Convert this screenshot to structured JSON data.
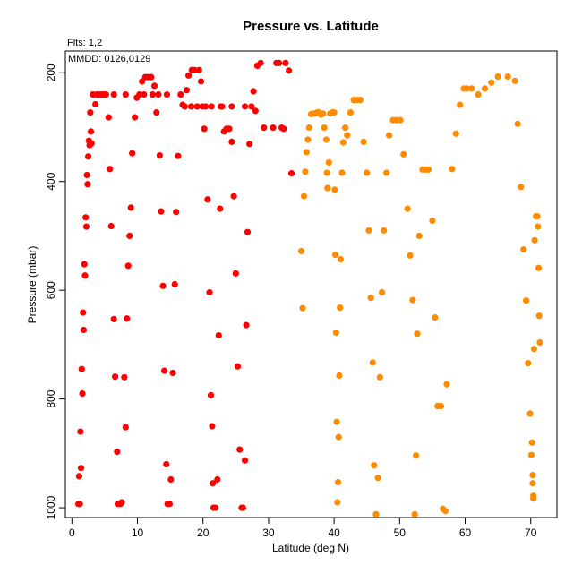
{
  "chart_data": {
    "type": "scatter",
    "title": "Pressure vs. Latitude",
    "xlabel": "Latitude (deg N)",
    "ylabel": "Pressure (mbar)",
    "annotation_flts": "Flts: 1,2",
    "annotation_mmdd": "MMDD: 0126,0129",
    "xlim": [
      -1,
      74
    ],
    "ylim": [
      1018,
      160
    ],
    "y_reversed": true,
    "grid": false,
    "legend": "none",
    "x_ticks": [
      0,
      10,
      20,
      30,
      40,
      50,
      60,
      70
    ],
    "y_ticks": [
      200,
      400,
      600,
      800,
      1000
    ],
    "series": [
      {
        "color": "#ff0000",
        "points": [
          [
            1.0,
            993
          ],
          [
            1.1,
            942
          ],
          [
            1.2,
            993
          ],
          [
            1.3,
            860
          ],
          [
            1.4,
            927
          ],
          [
            1.5,
            745
          ],
          [
            1.6,
            790
          ],
          [
            1.7,
            641
          ],
          [
            1.8,
            673
          ],
          [
            1.9,
            552
          ],
          [
            2.0,
            573
          ],
          [
            2.1,
            466
          ],
          [
            2.2,
            483
          ],
          [
            2.3,
            388
          ],
          [
            2.4,
            405
          ],
          [
            2.5,
            354
          ],
          [
            2.6,
            325
          ],
          [
            2.7,
            333
          ],
          [
            2.8,
            273
          ],
          [
            2.9,
            308
          ],
          [
            3.0,
            330
          ],
          [
            3.2,
            240
          ],
          [
            3.6,
            258
          ],
          [
            4.0,
            240
          ],
          [
            4.4,
            240
          ],
          [
            4.8,
            240
          ],
          [
            5.2,
            240
          ],
          [
            5.6,
            282
          ],
          [
            5.8,
            377
          ],
          [
            6.0,
            482
          ],
          [
            6.4,
            653
          ],
          [
            6.6,
            759
          ],
          [
            6.9,
            897
          ],
          [
            7.0,
            993
          ],
          [
            7.4,
            993
          ],
          [
            7.6,
            990
          ],
          [
            8.0,
            760
          ],
          [
            8.2,
            852
          ],
          [
            8.4,
            652
          ],
          [
            8.6,
            555
          ],
          [
            8.8,
            500
          ],
          [
            9.0,
            448
          ],
          [
            9.2,
            348
          ],
          [
            9.6,
            282
          ],
          [
            9.9,
            246
          ],
          [
            10.3,
            240
          ],
          [
            10.7,
            216
          ],
          [
            11.2,
            208
          ],
          [
            11.6,
            208
          ],
          [
            12.1,
            208
          ],
          [
            12.6,
            224
          ],
          [
            12.9,
            273
          ],
          [
            13.2,
            240
          ],
          [
            13.4,
            352
          ],
          [
            13.6,
            455
          ],
          [
            13.9,
            592
          ],
          [
            14.1,
            748
          ],
          [
            14.4,
            920
          ],
          [
            14.6,
            993
          ],
          [
            14.9,
            993
          ],
          [
            15.1,
            948
          ],
          [
            15.4,
            752
          ],
          [
            15.7,
            589
          ],
          [
            15.9,
            456
          ],
          [
            16.2,
            353
          ],
          [
            16.6,
            240
          ],
          [
            16.9,
            259
          ],
          [
            17.2,
            262
          ],
          [
            17.5,
            232
          ],
          [
            17.8,
            205
          ],
          [
            18.3,
            195
          ],
          [
            18.7,
            195
          ],
          [
            19.1,
            262
          ],
          [
            19.4,
            195
          ],
          [
            19.7,
            216
          ],
          [
            20.2,
            303
          ],
          [
            20.4,
            262
          ],
          [
            20.7,
            433
          ],
          [
            21.0,
            604
          ],
          [
            21.2,
            793
          ],
          [
            21.4,
            850
          ],
          [
            21.5,
            955
          ],
          [
            21.6,
            1000
          ],
          [
            21.9,
            1000
          ],
          [
            22.2,
            948
          ],
          [
            22.4,
            683
          ],
          [
            22.6,
            450
          ],
          [
            22.9,
            262
          ],
          [
            23.2,
            308
          ],
          [
            23.6,
            303
          ],
          [
            24.0,
            303
          ],
          [
            24.4,
            327
          ],
          [
            24.7,
            427
          ],
          [
            25.0,
            569
          ],
          [
            25.3,
            740
          ],
          [
            25.6,
            893
          ],
          [
            25.9,
            1000
          ],
          [
            26.1,
            1000
          ],
          [
            26.4,
            913
          ],
          [
            26.6,
            664
          ],
          [
            26.8,
            493
          ],
          [
            27.1,
            331
          ],
          [
            27.4,
            262
          ],
          [
            27.7,
            234
          ],
          [
            28.0,
            270
          ],
          [
            28.3,
            187
          ],
          [
            28.8,
            182
          ],
          [
            29.3,
            301
          ],
          [
            30.7,
            301
          ],
          [
            31.2,
            182
          ],
          [
            31.6,
            182
          ],
          [
            32.0,
            301
          ],
          [
            32.6,
            182
          ],
          [
            33.1,
            196
          ],
          [
            33.5,
            385
          ],
          [
            26.4,
            262
          ],
          [
            24.4,
            262
          ],
          [
            22.7,
            262
          ],
          [
            21.3,
            262
          ],
          [
            19.9,
            262
          ],
          [
            18.2,
            262
          ],
          [
            14.5,
            240
          ],
          [
            12.3,
            240
          ],
          [
            11.0,
            240
          ],
          [
            8.2,
            240
          ],
          [
            6.4,
            240
          ],
          [
            4.9,
            240
          ],
          [
            3.8,
            240
          ],
          [
            32.3,
            303
          ]
        ]
      },
      {
        "color": "#ff8c00",
        "points": [
          [
            35.0,
            528
          ],
          [
            35.2,
            633
          ],
          [
            35.4,
            427
          ],
          [
            35.6,
            382
          ],
          [
            35.8,
            346
          ],
          [
            36.0,
            323
          ],
          [
            36.2,
            301
          ],
          [
            36.5,
            276
          ],
          [
            36.8,
            275
          ],
          [
            37.1,
            275
          ],
          [
            37.4,
            273
          ],
          [
            37.7,
            273
          ],
          [
            38.0,
            277
          ],
          [
            38.3,
            275
          ],
          [
            38.5,
            301
          ],
          [
            38.8,
            323
          ],
          [
            38.9,
            384
          ],
          [
            39.0,
            412
          ],
          [
            39.2,
            365
          ],
          [
            39.4,
            275
          ],
          [
            39.7,
            273
          ],
          [
            40.0,
            273
          ],
          [
            40.1,
            415
          ],
          [
            40.2,
            535
          ],
          [
            40.3,
            678
          ],
          [
            40.4,
            842
          ],
          [
            40.5,
            990
          ],
          [
            40.6,
            953
          ],
          [
            40.7,
            870
          ],
          [
            40.8,
            757
          ],
          [
            40.9,
            632
          ],
          [
            41.0,
            543
          ],
          [
            41.2,
            384
          ],
          [
            41.4,
            328
          ],
          [
            41.7,
            301
          ],
          [
            42.0,
            315
          ],
          [
            42.5,
            273
          ],
          [
            43.0,
            250
          ],
          [
            43.5,
            250
          ],
          [
            44.0,
            250
          ],
          [
            44.5,
            327
          ],
          [
            45.0,
            384
          ],
          [
            45.3,
            490
          ],
          [
            45.6,
            614
          ],
          [
            45.9,
            733
          ],
          [
            46.1,
            922
          ],
          [
            46.4,
            1012
          ],
          [
            46.7,
            945
          ],
          [
            47.0,
            760
          ],
          [
            47.3,
            604
          ],
          [
            47.6,
            490
          ],
          [
            48.0,
            384
          ],
          [
            48.4,
            315
          ],
          [
            49.0,
            287
          ],
          [
            49.5,
            287
          ],
          [
            50.1,
            287
          ],
          [
            50.6,
            350
          ],
          [
            51.2,
            450
          ],
          [
            51.6,
            536
          ],
          [
            52.0,
            618
          ],
          [
            52.3,
            1012
          ],
          [
            52.5,
            904
          ],
          [
            52.7,
            680
          ],
          [
            53.0,
            500
          ],
          [
            53.5,
            378
          ],
          [
            54.0,
            378
          ],
          [
            54.4,
            378
          ],
          [
            55.0,
            472
          ],
          [
            55.4,
            650
          ],
          [
            55.8,
            813
          ],
          [
            56.3,
            813
          ],
          [
            56.6,
            1002
          ],
          [
            57.0,
            1006
          ],
          [
            57.2,
            773
          ],
          [
            58.0,
            377
          ],
          [
            58.6,
            312
          ],
          [
            59.2,
            259
          ],
          [
            59.8,
            229
          ],
          [
            60.3,
            229
          ],
          [
            61.0,
            229
          ],
          [
            62.0,
            240
          ],
          [
            63.0,
            229
          ],
          [
            64.0,
            218
          ],
          [
            65.0,
            207
          ],
          [
            66.5,
            207
          ],
          [
            67.6,
            215
          ],
          [
            68.0,
            294
          ],
          [
            68.5,
            410
          ],
          [
            68.9,
            525
          ],
          [
            69.3,
            619
          ],
          [
            69.6,
            734
          ],
          [
            69.9,
            827
          ],
          [
            70.1,
            903
          ],
          [
            70.2,
            880
          ],
          [
            70.3,
            940
          ],
          [
            70.3,
            955
          ],
          [
            70.4,
            983
          ],
          [
            70.4,
            978
          ],
          [
            70.5,
            708
          ],
          [
            70.6,
            508
          ],
          [
            70.8,
            464
          ],
          [
            71.0,
            464
          ],
          [
            71.1,
            483
          ],
          [
            71.2,
            559
          ],
          [
            71.3,
            647
          ],
          [
            71.4,
            696
          ]
        ]
      }
    ]
  }
}
